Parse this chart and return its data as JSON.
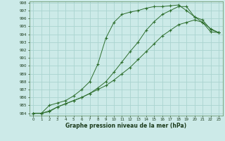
{
  "title": "Graphe pression niveau de la mer (hPa)",
  "bg_color": "#cceae8",
  "grid_color": "#aad4d0",
  "line_color": "#2d6e2d",
  "marker": "+",
  "x_ticks": [
    0,
    1,
    2,
    3,
    4,
    5,
    6,
    7,
    8,
    9,
    10,
    11,
    12,
    13,
    14,
    15,
    16,
    17,
    18,
    19,
    20,
    21,
    22,
    23
  ],
  "y_min": 984,
  "y_max": 998,
  "y_ticks": [
    984,
    985,
    986,
    987,
    988,
    989,
    990,
    991,
    992,
    993,
    994,
    995,
    996,
    997,
    998
  ],
  "curve1_x": [
    0,
    1,
    2,
    3,
    4,
    5,
    6,
    7,
    8,
    9,
    10,
    11,
    12,
    13,
    14,
    15,
    16,
    17,
    18,
    19,
    20,
    21,
    22,
    23
  ],
  "curve1_y": [
    984.0,
    984.0,
    985.0,
    985.3,
    985.6,
    986.2,
    987.0,
    988.0,
    990.2,
    993.5,
    995.5,
    996.5,
    996.8,
    997.0,
    997.3,
    997.5,
    997.5,
    997.6,
    997.7,
    997.0,
    996.2,
    995.5,
    994.7,
    994.2
  ],
  "curve2_x": [
    0,
    1,
    2,
    3,
    4,
    5,
    6,
    7,
    8,
    9,
    10,
    11,
    12,
    13,
    14,
    15,
    16,
    17,
    18,
    19,
    20,
    21,
    22,
    23
  ],
  "curve2_y": [
    984.0,
    984.0,
    984.3,
    984.8,
    985.2,
    985.6,
    986.0,
    986.5,
    987.2,
    988.0,
    989.2,
    990.5,
    991.8,
    993.0,
    994.5,
    995.6,
    996.5,
    997.0,
    997.5,
    997.5,
    996.2,
    995.8,
    994.6,
    994.2
  ],
  "curve3_x": [
    0,
    1,
    2,
    3,
    4,
    5,
    6,
    7,
    8,
    9,
    10,
    11,
    12,
    13,
    14,
    15,
    16,
    17,
    18,
    19,
    20,
    21,
    22,
    23
  ],
  "curve3_y": [
    984.0,
    984.0,
    984.2,
    984.8,
    985.2,
    985.6,
    986.0,
    986.5,
    987.0,
    987.5,
    988.2,
    989.0,
    989.8,
    990.8,
    991.8,
    992.8,
    993.8,
    994.5,
    995.2,
    995.5,
    995.8,
    995.5,
    994.3,
    994.2
  ]
}
